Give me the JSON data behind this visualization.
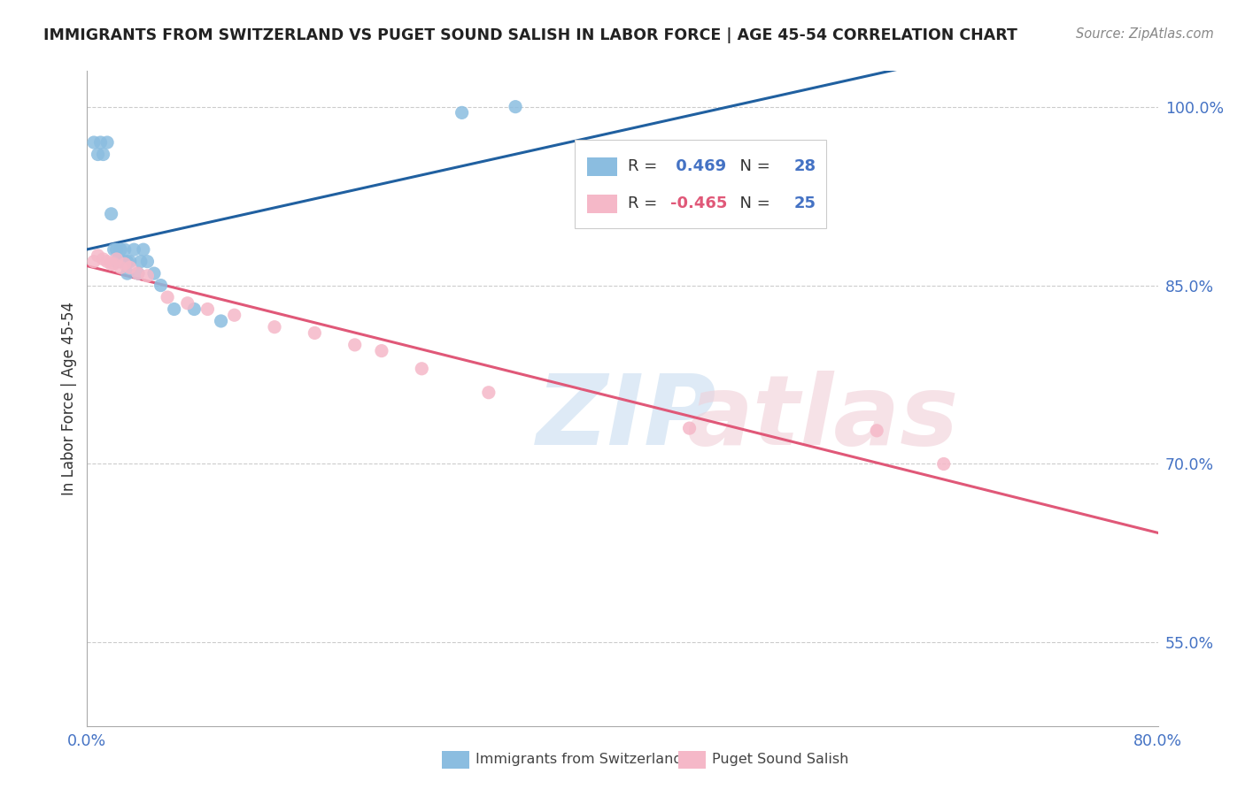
{
  "title": "IMMIGRANTS FROM SWITZERLAND VS PUGET SOUND SALISH IN LABOR FORCE | AGE 45-54 CORRELATION CHART",
  "source": "Source: ZipAtlas.com",
  "ylabel": "In Labor Force | Age 45-54",
  "r_blue": 0.469,
  "n_blue": 28,
  "r_pink": -0.465,
  "n_pink": 25,
  "blue_label": "Immigrants from Switzerland",
  "pink_label": "Puget Sound Salish",
  "x_min": 0.0,
  "x_max": 0.8,
  "y_min": 0.48,
  "y_max": 1.03,
  "x_ticks": [
    0.0,
    0.2,
    0.4,
    0.6,
    0.8
  ],
  "x_tick_labels": [
    "0.0%",
    "",
    "",
    "",
    "80.0%"
  ],
  "y_ticks": [
    0.55,
    0.7,
    0.85,
    1.0
  ],
  "y_tick_labels": [
    "55.0%",
    "70.0%",
    "85.0%",
    "100.0%"
  ],
  "blue_scatter_x": [
    0.005,
    0.008,
    0.01,
    0.012,
    0.015,
    0.018,
    0.02,
    0.022,
    0.022,
    0.025,
    0.025,
    0.027,
    0.028,
    0.03,
    0.03,
    0.032,
    0.035,
    0.038,
    0.04,
    0.042,
    0.045,
    0.05,
    0.055,
    0.065,
    0.08,
    0.1,
    0.28,
    0.32
  ],
  "blue_scatter_y": [
    0.97,
    0.96,
    0.97,
    0.96,
    0.97,
    0.91,
    0.88,
    0.88,
    0.87,
    0.87,
    0.88,
    0.87,
    0.88,
    0.87,
    0.86,
    0.87,
    0.88,
    0.86,
    0.87,
    0.88,
    0.87,
    0.86,
    0.85,
    0.83,
    0.83,
    0.82,
    0.995,
    1.0
  ],
  "pink_scatter_x": [
    0.005,
    0.008,
    0.012,
    0.015,
    0.018,
    0.02,
    0.022,
    0.025,
    0.028,
    0.032,
    0.038,
    0.045,
    0.06,
    0.075,
    0.09,
    0.11,
    0.14,
    0.17,
    0.2,
    0.22,
    0.25,
    0.3,
    0.45,
    0.59,
    0.64
  ],
  "pink_scatter_y": [
    0.87,
    0.875,
    0.872,
    0.87,
    0.868,
    0.868,
    0.872,
    0.865,
    0.868,
    0.865,
    0.86,
    0.858,
    0.84,
    0.835,
    0.83,
    0.825,
    0.815,
    0.81,
    0.8,
    0.795,
    0.78,
    0.76,
    0.73,
    0.728,
    0.7
  ],
  "blue_color": "#8bbde0",
  "pink_color": "#f5b8c8",
  "blue_line_color": "#2060a0",
  "pink_line_color": "#e05878",
  "grid_color": "#cccccc",
  "background_color": "#ffffff",
  "title_color": "#222222",
  "axis_label_color": "#333333",
  "tick_color": "#4472c4",
  "source_color": "#888888"
}
